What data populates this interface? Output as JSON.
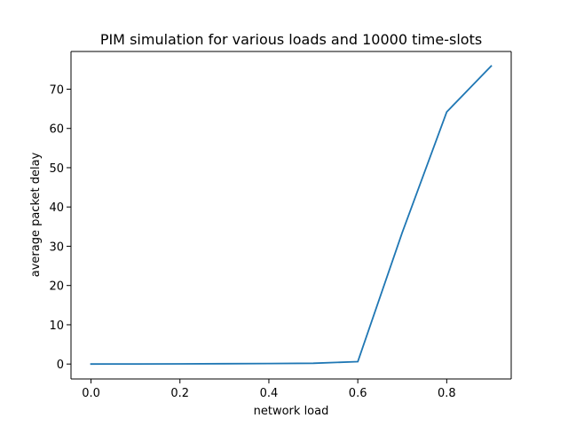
{
  "chart_data": {
    "type": "line",
    "title": "PIM simulation for various loads and 10000 time-slots",
    "xlabel": "network load",
    "ylabel": "average packet delay",
    "xlim": [
      -0.045,
      0.945
    ],
    "ylim": [
      -3.8,
      79.6
    ],
    "xticks": [
      0.0,
      0.2,
      0.4,
      0.6,
      0.8
    ],
    "xtick_labels": [
      "0.0",
      "0.2",
      "0.4",
      "0.6",
      "0.8"
    ],
    "yticks": [
      0,
      10,
      20,
      30,
      40,
      50,
      60,
      70
    ],
    "ytick_labels": [
      "0",
      "10",
      "20",
      "30",
      "40",
      "50",
      "60",
      "70"
    ],
    "grid": false,
    "legend": "none",
    "series": [
      {
        "color": "#1f77b4",
        "x": [
          0.0,
          0.1,
          0.2,
          0.3,
          0.4,
          0.5,
          0.6,
          0.7,
          0.8,
          0.9
        ],
        "y": [
          0.0,
          0.02,
          0.05,
          0.08,
          0.12,
          0.2,
          0.6,
          33.5,
          64.2,
          75.9
        ]
      }
    ]
  }
}
